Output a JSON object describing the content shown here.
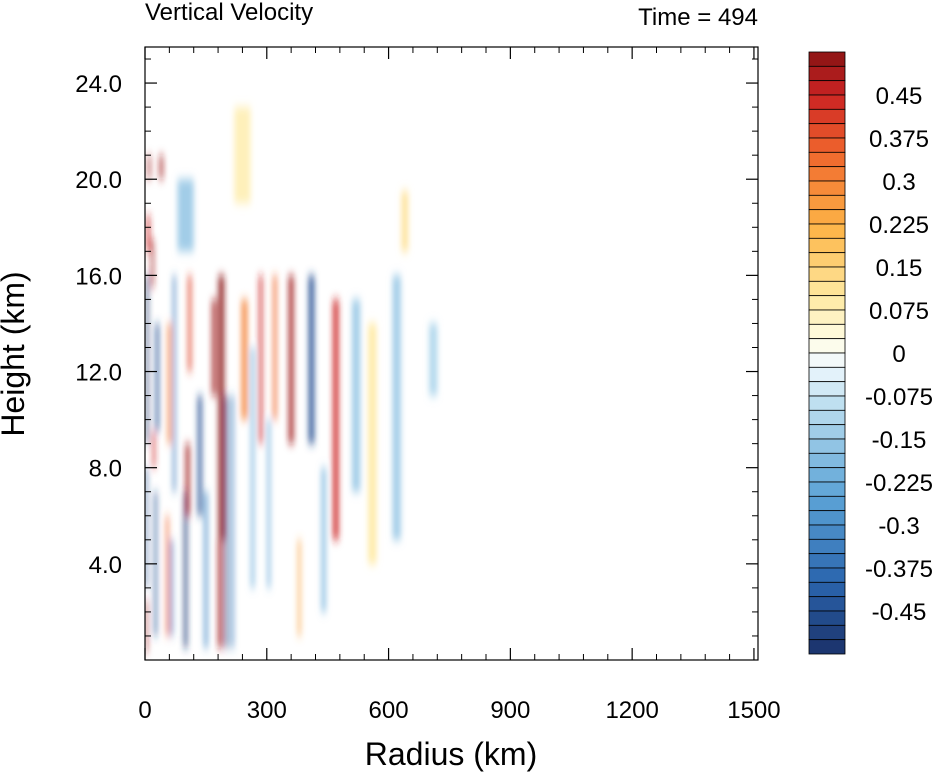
{
  "chart_data": {
    "type": "heatmap",
    "title": "Vertical Velocity",
    "subtitle": "Time = 494",
    "xlabel": "Radius (km)",
    "ylabel": "Height (km)",
    "xlim": [
      0,
      1510
    ],
    "ylim": [
      0,
      25.5
    ],
    "x_ticks": [
      "0",
      "300",
      "600",
      "900",
      "1200",
      "1500"
    ],
    "y_ticks": [
      "4.0",
      "8.0",
      "12.0",
      "16.0",
      "20.0",
      "24.0"
    ],
    "colorbar": {
      "range": [
        -0.525,
        0.525
      ],
      "step": 0.025,
      "labels": [
        "0.45",
        "0.375",
        "0.3",
        "0.225",
        "0.15",
        "0.075",
        "0",
        "-0.075",
        "-0.15",
        "-0.225",
        "-0.3",
        "-0.375",
        "-0.45"
      ]
    },
    "bands": [
      {
        "r": 3,
        "w": 4,
        "z0": 0.3,
        "z1": 2.5,
        "v": 0.5
      },
      {
        "r": 3,
        "w": 5,
        "z0": 3,
        "z1": 8,
        "v": -0.45
      },
      {
        "r": 5,
        "w": 6,
        "z0": 9,
        "z1": 16,
        "v": -0.52
      },
      {
        "r": 8,
        "w": 8,
        "z0": 17,
        "z1": 18.5,
        "v": 0.45
      },
      {
        "r": 10,
        "w": 6,
        "z0": 20,
        "z1": 21,
        "v": 0.5
      },
      {
        "r": 18,
        "w": 6,
        "z0": 15.5,
        "z1": 17.5,
        "v": 0.5
      },
      {
        "r": 22,
        "w": 6,
        "z0": 8,
        "z1": 9.5,
        "v": 0.45
      },
      {
        "r": 26,
        "w": 6,
        "z0": 1,
        "z1": 7,
        "v": -0.45
      },
      {
        "r": 30,
        "w": 8,
        "z0": 9.5,
        "z1": 14,
        "v": -0.45
      },
      {
        "r": 40,
        "w": 8,
        "z0": 20,
        "z1": 21,
        "v": 0.5
      },
      {
        "r": 55,
        "w": 6,
        "z0": 1,
        "z1": 6,
        "v": 0.35
      },
      {
        "r": 60,
        "w": 8,
        "z0": 9,
        "z1": 14,
        "v": 0.3
      },
      {
        "r": 65,
        "w": 6,
        "z0": 1,
        "z1": 5,
        "v": -0.4
      },
      {
        "r": 72,
        "w": 6,
        "z0": 7,
        "z1": 16,
        "v": -0.35
      },
      {
        "r": 100,
        "w": 8,
        "z0": 0.5,
        "z1": 7,
        "v": -0.5
      },
      {
        "r": 105,
        "w": 10,
        "z0": 6,
        "z1": 9,
        "v": 0.5
      },
      {
        "r": 110,
        "w": 8,
        "z0": 12,
        "z1": 16,
        "v": 0.4
      },
      {
        "r": 135,
        "w": 10,
        "z0": 6,
        "z1": 11,
        "v": -0.45
      },
      {
        "r": 150,
        "w": 8,
        "z0": 0.5,
        "z1": 7,
        "v": -0.3
      },
      {
        "r": 170,
        "w": 10,
        "z0": 11,
        "z1": 15,
        "v": 0.5
      },
      {
        "r": 185,
        "w": 10,
        "z0": 0.5,
        "z1": 5,
        "v": 0.5
      },
      {
        "r": 188,
        "w": 14,
        "z0": 5,
        "z1": 16,
        "v": 0.55
      },
      {
        "r": 200,
        "w": 6,
        "z0": 0.5,
        "z1": 11,
        "v": -0.55
      },
      {
        "r": 215,
        "w": 6,
        "z0": 0.5,
        "z1": 11,
        "v": -0.35
      },
      {
        "r": 245,
        "w": 14,
        "z0": 10,
        "z1": 15,
        "v": 0.3
      },
      {
        "r": 265,
        "w": 8,
        "z0": 3,
        "z1": 13,
        "v": -0.2
      },
      {
        "r": 285,
        "w": 8,
        "z0": 9,
        "z1": 16,
        "v": 0.45
      },
      {
        "r": 305,
        "w": 6,
        "z0": 3,
        "z1": 10,
        "v": -0.25
      },
      {
        "r": 320,
        "w": 8,
        "z0": 10,
        "z1": 16,
        "v": 0.35
      },
      {
        "r": 360,
        "w": 12,
        "z0": 9,
        "z1": 16,
        "v": 0.5
      },
      {
        "r": 380,
        "w": 6,
        "z0": 1,
        "z1": 5,
        "v": 0.25
      },
      {
        "r": 410,
        "w": 14,
        "z0": 9,
        "z1": 16,
        "v": -0.45
      },
      {
        "r": 440,
        "w": 10,
        "z0": 2,
        "z1": 8,
        "v": -0.2
      },
      {
        "r": 470,
        "w": 14,
        "z0": 5,
        "z1": 15,
        "v": 0.45
      },
      {
        "r": 520,
        "w": 20,
        "z0": 7,
        "z1": 15,
        "v": -0.15
      },
      {
        "r": 560,
        "w": 20,
        "z0": 4,
        "z1": 14,
        "v": 0.1
      },
      {
        "r": 620,
        "w": 20,
        "z0": 5,
        "z1": 16,
        "v": -0.15
      },
      {
        "r": 640,
        "w": 16,
        "z0": 17,
        "z1": 19.5,
        "v": 0.12
      },
      {
        "r": 710,
        "w": 20,
        "z0": 11,
        "z1": 14,
        "v": -0.12
      },
      {
        "r": 240,
        "w": 40,
        "z0": 19,
        "z1": 23,
        "v": 0.08
      },
      {
        "r": 100,
        "w": 40,
        "z0": 17,
        "z1": 20,
        "v": -0.15
      }
    ]
  }
}
